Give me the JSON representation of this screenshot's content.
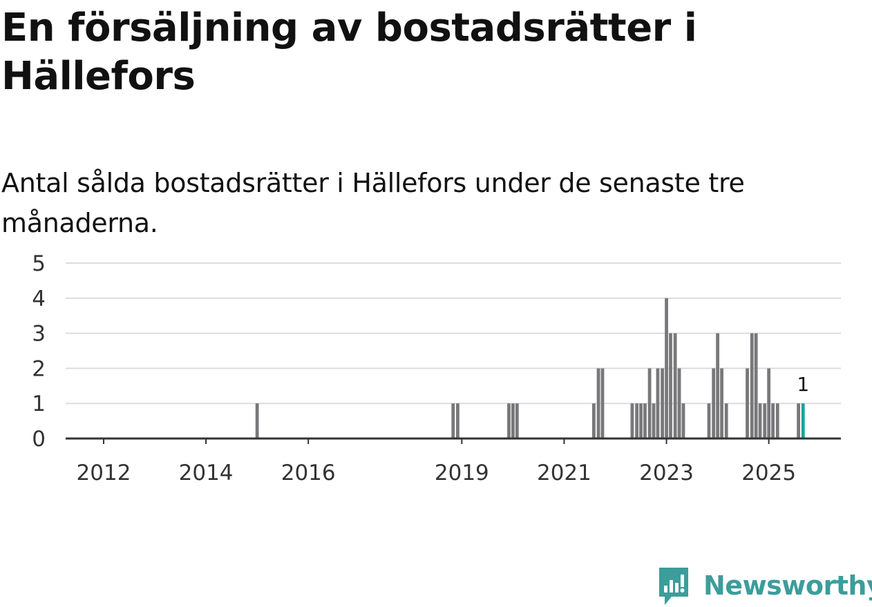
{
  "title": "En försäljning av bostadsrätter i Hällefors",
  "subtitle": "Antal sålda bostadsrätter i Hällefors under de senaste tre månaderna.",
  "brand": {
    "name": "Newsworthy",
    "color": "#3c9d9b"
  },
  "colors": {
    "bar": "#78787b",
    "highlight": "#16a39b",
    "grid": "#dcdcdc",
    "axis": "#333333",
    "text": "#333333"
  },
  "chart_data": {
    "type": "bar",
    "title": "En försäljning av bostadsrätter i Hällefors",
    "subtitle": "Antal sålda bostadsrätter i Hällefors under de senaste tre månaderna.",
    "xlabel": "",
    "ylabel": "",
    "ylim": [
      0,
      5
    ],
    "y_ticks": [
      0,
      1,
      2,
      3,
      4,
      5
    ],
    "grid": true,
    "x_ticks": [
      {
        "label": "2012",
        "year": 2012
      },
      {
        "label": "2014",
        "year": 2014
      },
      {
        "label": "2016",
        "year": 2016
      },
      {
        "label": "2019",
        "year": 2019
      },
      {
        "label": "2021",
        "year": 2021
      },
      {
        "label": "2023",
        "year": 2023
      },
      {
        "label": "2025",
        "year": 2025
      }
    ],
    "x_range": [
      2011,
      2026.42
    ],
    "bars": [
      {
        "t": 2015.0,
        "value": 1
      },
      {
        "t": 2018.83,
        "value": 1
      },
      {
        "t": 2018.92,
        "value": 1
      },
      {
        "t": 2019.92,
        "value": 1
      },
      {
        "t": 2020.0,
        "value": 1
      },
      {
        "t": 2020.08,
        "value": 1
      },
      {
        "t": 2021.58,
        "value": 1
      },
      {
        "t": 2021.67,
        "value": 2
      },
      {
        "t": 2021.75,
        "value": 2
      },
      {
        "t": 2022.33,
        "value": 1
      },
      {
        "t": 2022.42,
        "value": 1
      },
      {
        "t": 2022.5,
        "value": 1
      },
      {
        "t": 2022.58,
        "value": 1
      },
      {
        "t": 2022.67,
        "value": 2
      },
      {
        "t": 2022.75,
        "value": 1
      },
      {
        "t": 2022.83,
        "value": 2
      },
      {
        "t": 2022.92,
        "value": 2
      },
      {
        "t": 2023.0,
        "value": 4
      },
      {
        "t": 2023.08,
        "value": 3
      },
      {
        "t": 2023.17,
        "value": 3
      },
      {
        "t": 2023.25,
        "value": 2
      },
      {
        "t": 2023.33,
        "value": 1
      },
      {
        "t": 2023.83,
        "value": 1
      },
      {
        "t": 2023.92,
        "value": 2
      },
      {
        "t": 2024.0,
        "value": 3
      },
      {
        "t": 2024.08,
        "value": 2
      },
      {
        "t": 2024.17,
        "value": 1
      },
      {
        "t": 2024.58,
        "value": 2
      },
      {
        "t": 2024.67,
        "value": 3
      },
      {
        "t": 2024.75,
        "value": 3
      },
      {
        "t": 2024.83,
        "value": 1
      },
      {
        "t": 2024.92,
        "value": 1
      },
      {
        "t": 2025.0,
        "value": 2
      },
      {
        "t": 2025.08,
        "value": 1
      },
      {
        "t": 2025.17,
        "value": 1
      },
      {
        "t": 2025.58,
        "value": 1
      },
      {
        "t": 2025.67,
        "value": 1,
        "highlight": true
      }
    ],
    "annotations": [
      {
        "t": 2025.67,
        "value": 1,
        "text": "1"
      }
    ]
  }
}
